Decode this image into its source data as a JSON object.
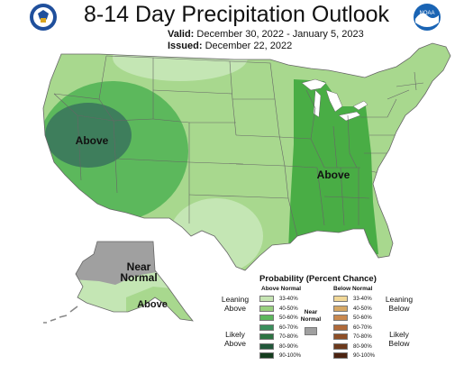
{
  "header": {
    "title": "8-14 Day Precipitation Outlook",
    "valid_label": "Valid:",
    "valid_value": "December 30, 2022 - January 5, 2023",
    "issued_label": "Issued:",
    "issued_value": "December 22, 2022"
  },
  "logos": {
    "left": {
      "icon": "department-of-commerce-seal",
      "color": "#1f4f9c"
    },
    "right": {
      "icon": "noaa-logo",
      "text": "NOAA",
      "color": "#1a64b4"
    }
  },
  "map_labels": {
    "west": "Above",
    "east": "Above",
    "alaska_north": "Near\nNormal",
    "alaska_south": "Above"
  },
  "colors": {
    "base": "#a8d88e",
    "light": "#c4e6b4",
    "mid": "#5cb85c",
    "strong": "#3aa23c",
    "darkest": "#3e7e5c",
    "near_normal": "#a0a0a0",
    "boundary": "#666666"
  },
  "legend": {
    "title": "Probability (Percent Chance)",
    "above_header": "Above Normal",
    "below_header": "Below Normal",
    "near_label": "Near\nNormal",
    "left_labels": [
      "Leaning\nAbove",
      "Likely\nAbove"
    ],
    "right_labels": [
      "Leaning\nBelow",
      "Likely\nBelow"
    ],
    "above": [
      {
        "range": "33-40%",
        "color": "#c6e5b3"
      },
      {
        "range": "40-50%",
        "color": "#98d17e"
      },
      {
        "range": "50-60%",
        "color": "#5cb85c"
      },
      {
        "range": "60-70%",
        "color": "#3a8f5c"
      },
      {
        "range": "70-80%",
        "color": "#2d7443"
      },
      {
        "range": "80-90%",
        "color": "#22583a"
      },
      {
        "range": "90-100%",
        "color": "#143d1e"
      }
    ],
    "below": [
      {
        "range": "33-40%",
        "color": "#f1d898"
      },
      {
        "range": "40-50%",
        "color": "#d6a865"
      },
      {
        "range": "50-60%",
        "color": "#c9884e"
      },
      {
        "range": "60-70%",
        "color": "#b06a3a"
      },
      {
        "range": "70-80%",
        "color": "#8e4f27"
      },
      {
        "range": "80-90%",
        "color": "#6b391c"
      },
      {
        "range": "90-100%",
        "color": "#4b2310"
      }
    ],
    "near_color": "#a0a0a0"
  }
}
